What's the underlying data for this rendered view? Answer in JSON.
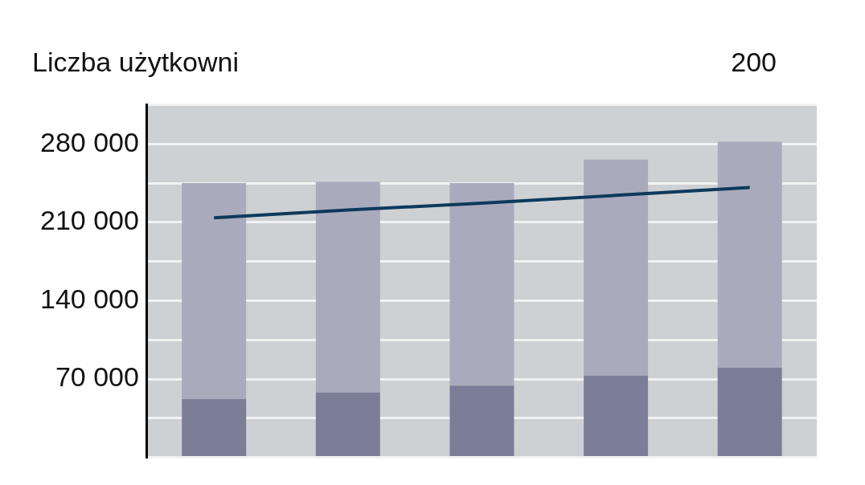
{
  "chart_data": {
    "type": "bar",
    "title": "Liczba użytkowni",
    "annotations": [
      "200"
    ],
    "stacked": true,
    "categories": [
      null,
      null,
      null,
      null,
      null
    ],
    "series": [
      {
        "color": "#7c7e98",
        "values": [
          52000,
          58000,
          64000,
          73000,
          80000
        ]
      },
      {
        "color": "#a9abbd",
        "values": [
          193000,
          188000,
          181000,
          193000,
          202000
        ]
      },
      {
        "type": "line",
        "color": "#0d3a5c",
        "values": [
          214000,
          221000,
          227000,
          234000,
          241000
        ]
      }
    ],
    "ylim": [
      0,
      315000
    ],
    "yticks": [
      {
        "value": 0,
        "label": null
      },
      {
        "value": 35000,
        "label": null
      },
      {
        "value": 70000,
        "label": "70 000"
      },
      {
        "value": 105000,
        "label": null
      },
      {
        "value": 140000,
        "label": "140 000"
      },
      {
        "value": 175000,
        "label": null
      },
      {
        "value": 210000,
        "label": "210 000"
      },
      {
        "value": 245000,
        "label": null
      },
      {
        "value": 280000,
        "label": "280 000"
      },
      {
        "value": 315000,
        "label": null
      }
    ],
    "grid": "y",
    "legend": false,
    "marker": "none"
  }
}
